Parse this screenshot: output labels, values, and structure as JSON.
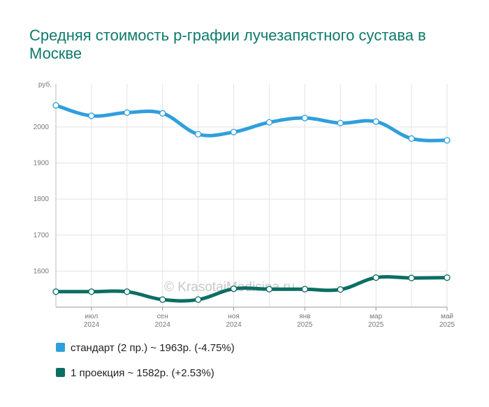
{
  "chart_data": {
    "type": "line",
    "title": "Средняя стоимость р-графии лучезапястного сустава в Москве",
    "y_unit_label": "руб.",
    "ylim": [
      1500,
      2120
    ],
    "y_ticks": [
      1600,
      1700,
      1800,
      1900,
      2000
    ],
    "x_ticks": [
      {
        "index": 1,
        "month": "июл",
        "year": "2024"
      },
      {
        "index": 3,
        "month": "сен",
        "year": "2024"
      },
      {
        "index": 5,
        "month": "ноя",
        "year": "2024"
      },
      {
        "index": 7,
        "month": "янв",
        "year": "2025"
      },
      {
        "index": 9,
        "month": "мар",
        "year": "2025"
      },
      {
        "index": 11,
        "month": "май",
        "year": "2025"
      }
    ],
    "x": [
      "2024-06",
      "2024-07",
      "2024-08",
      "2024-09",
      "2024-10",
      "2024-11",
      "2024-12",
      "2025-01",
      "2025-02",
      "2025-03",
      "2025-04",
      "2025-05"
    ],
    "grid": true,
    "legend_position": "bottom",
    "watermark": "© KrasotaiMedicina.ru",
    "series": [
      {
        "name": "стандарт (2 пр.) ~ 1963р. (-4.75%)",
        "color": "#2f9fdc",
        "values": [
          2060,
          2031,
          2040,
          2038,
          1980,
          1986,
          2013,
          2025,
          2011,
          2015,
          1968,
          1963
        ]
      },
      {
        "name": "1 проекция ~ 1582р. (+2.53%)",
        "color": "#0b6e63",
        "values": [
          1543,
          1543,
          1543,
          1521,
          1521,
          1551,
          1550,
          1550,
          1549,
          1582,
          1581,
          1582
        ]
      }
    ]
  }
}
